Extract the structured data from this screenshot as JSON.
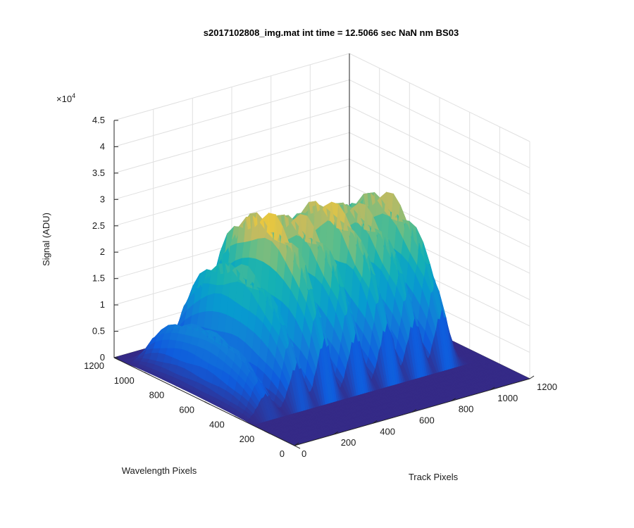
{
  "chart_data": {
    "type": "surface",
    "title": "s2017102808_img.mat int time = 12.5066 sec  NaN nm BS03",
    "xlabel": "Track Pixels",
    "ylabel": "Wavelength Pixels",
    "zlabel": "Signal (ADU)",
    "xlim": [
      0,
      1200
    ],
    "ylim": [
      0,
      1200
    ],
    "zlim": [
      0,
      45000
    ],
    "x_ticks": [
      0,
      200,
      400,
      600,
      800,
      1000,
      1200
    ],
    "y_ticks": [
      0,
      200,
      400,
      600,
      800,
      1000,
      1200
    ],
    "z_ticks": [
      0,
      5000,
      10000,
      15000,
      20000,
      25000,
      30000,
      35000,
      40000,
      45000
    ],
    "z_tick_labels": [
      "0",
      "0.5",
      "1",
      "1.5",
      "2",
      "2.5",
      "3",
      "3.5",
      "4",
      "4.5"
    ],
    "z_exponent_label": "×10",
    "z_exponent": "4",
    "grid": true,
    "colormap": "parula",
    "track_peaks": [
      {
        "track_center": 100,
        "peak_signal": 11500
      },
      {
        "track_center": 260,
        "peak_signal": 22500
      },
      {
        "track_center": 400,
        "peak_signal": 31000
      },
      {
        "track_center": 560,
        "peak_signal": 29000
      },
      {
        "track_center": 720,
        "peak_signal": 30000
      },
      {
        "track_center": 860,
        "peak_signal": 28000
      },
      {
        "track_center": 1000,
        "peak_signal": 28500
      }
    ]
  }
}
